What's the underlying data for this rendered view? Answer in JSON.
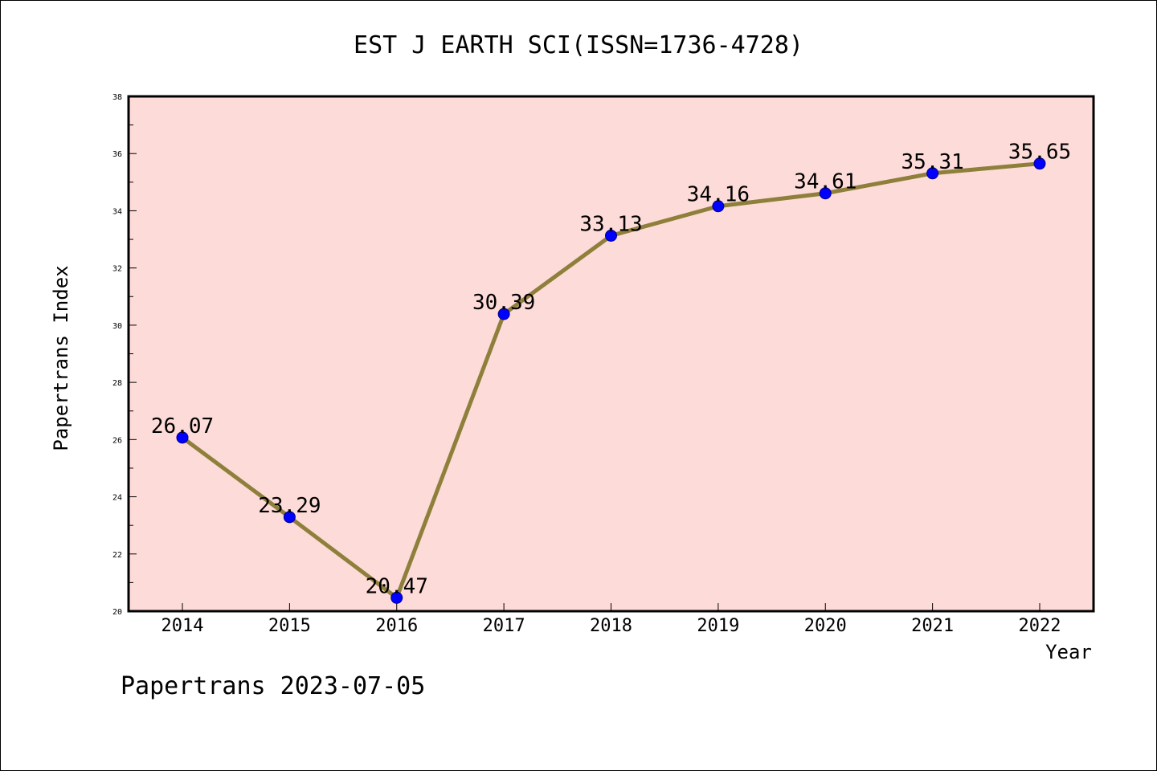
{
  "chart_data": {
    "type": "line",
    "title": "EST J EARTH SCI(ISSN=1736-4728)",
    "xlabel": "Year",
    "ylabel": "Papertrans Index",
    "categories": [
      "2014",
      "2015",
      "2016",
      "2017",
      "2018",
      "2019",
      "2020",
      "2021",
      "2022"
    ],
    "series": [
      {
        "values": [
          26.07,
          23.29,
          20.47,
          30.39,
          33.13,
          34.16,
          34.61,
          35.31,
          35.65
        ],
        "labels": [
          "26.07",
          "23.29",
          "20.47",
          "30.39",
          "33.13",
          "34.16",
          "34.61",
          "35.31",
          "35.65"
        ]
      }
    ],
    "ylim": [
      20,
      38
    ],
    "yticks": [
      "20",
      "22",
      "24",
      "26",
      "28",
      "30",
      "32",
      "34",
      "36",
      "38"
    ],
    "grid": false,
    "colors": {
      "plot_background": "#fddbd8",
      "line": "#8e7f3b",
      "marker": "#0000ff"
    }
  },
  "footer": "Papertrans 2023-07-05"
}
